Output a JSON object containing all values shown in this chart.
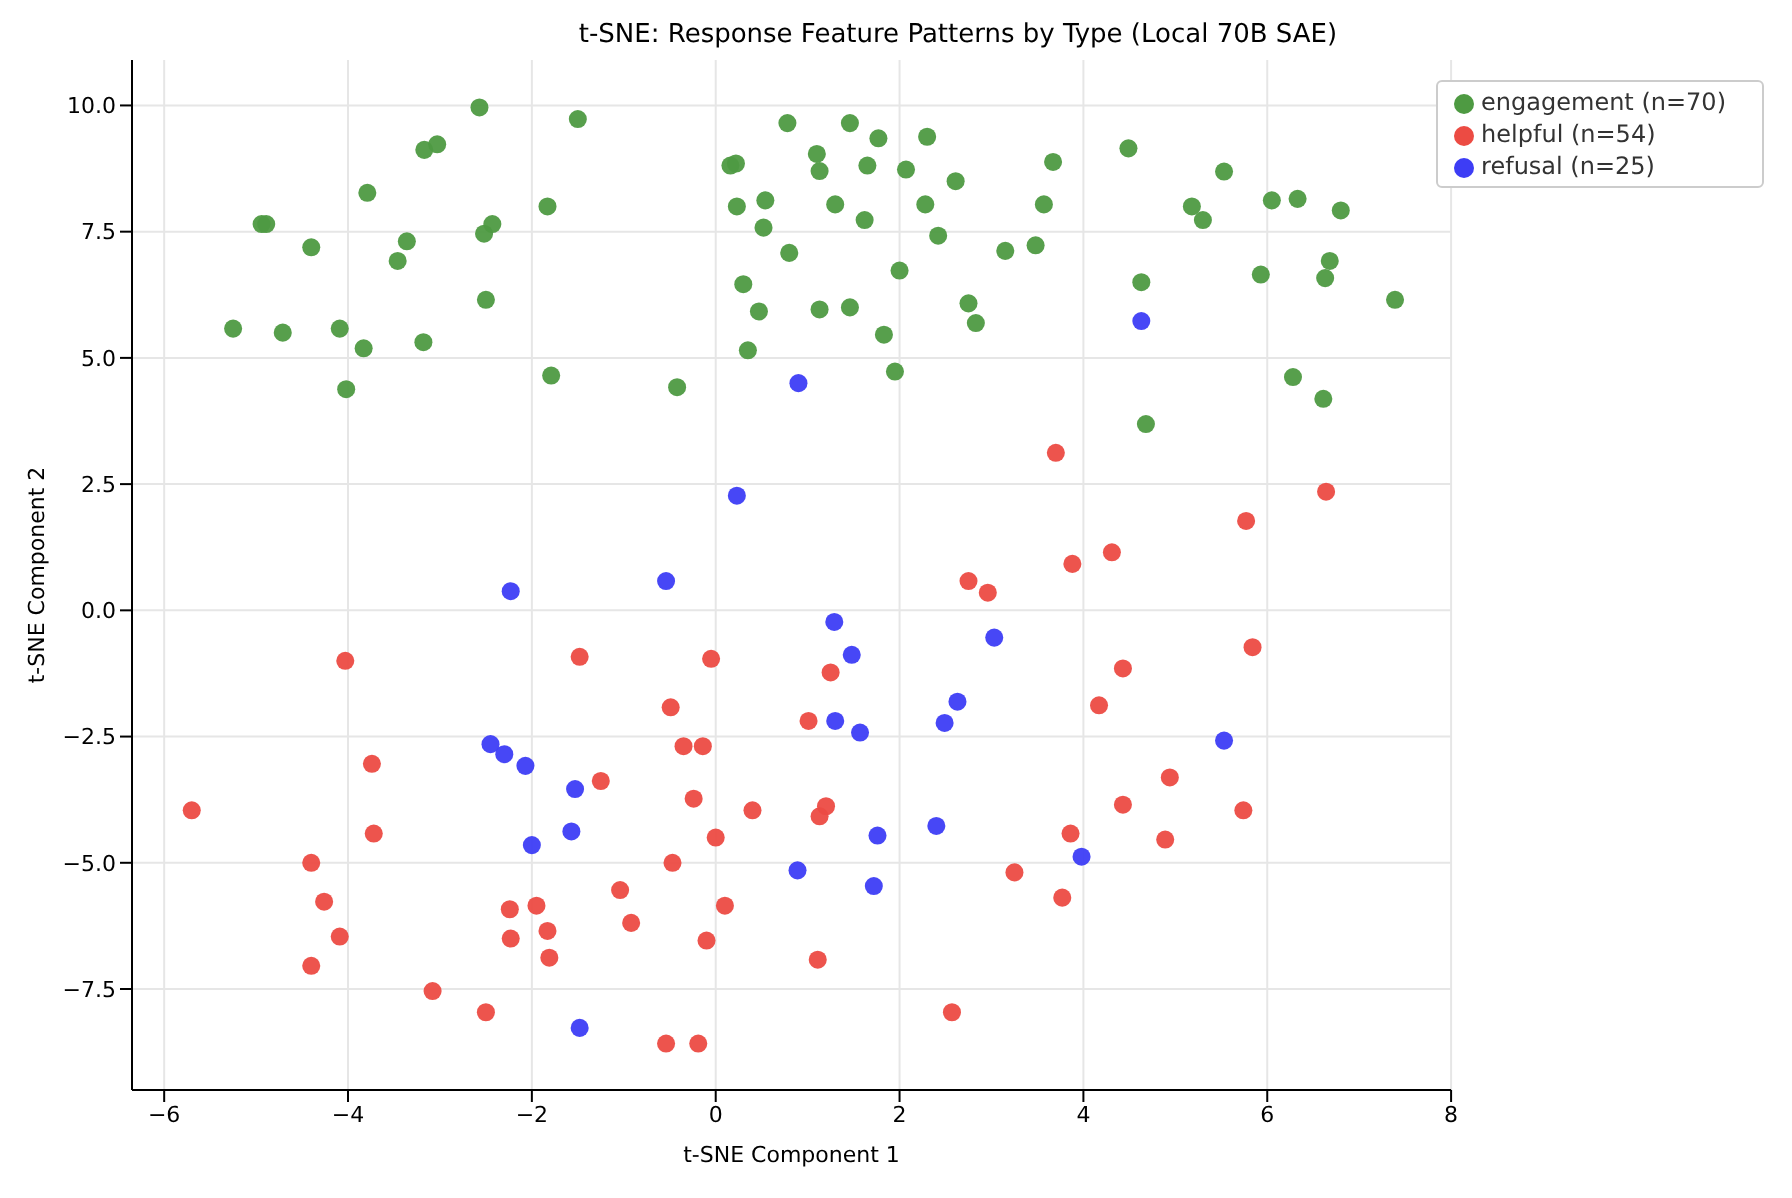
{
  "chart_data": {
    "type": "scatter",
    "title": "t-SNE: Response Feature Patterns by Type (Local 70B SAE)",
    "xlabel": "t-SNE Component 1",
    "ylabel": "t-SNE Component 2",
    "xlim": [
      -6.35,
      8.0
    ],
    "xticks": [
      {
        "value": -6,
        "label": "−6"
      },
      {
        "value": -4,
        "label": "−4"
      },
      {
        "value": -2,
        "label": "−2"
      },
      0,
      2,
      4,
      6,
      8
    ],
    "ylim": [
      -9.5,
      10.9
    ],
    "yticks": [
      {
        "value": -7.5,
        "label": "−7.5"
      },
      {
        "value": -5,
        "label": "−5.0"
      },
      {
        "value": -2.5,
        "label": "−2.5"
      },
      {
        "value": 0,
        "label": "0.0"
      },
      {
        "value": 2.5,
        "label": "2.5"
      },
      {
        "value": 5,
        "label": "5.0"
      },
      {
        "value": 7.5,
        "label": "7.5"
      },
      {
        "value": 10,
        "label": "10.0"
      }
    ],
    "grid": true,
    "legend": "top right",
    "marker": "circle",
    "series": [
      {
        "name": "helpful (n=54)",
        "color": "#ec4b43",
        "x": [
          3.7,
          6.64,
          5.77,
          4.31,
          3.88,
          -4.03,
          -3.74,
          -3.72,
          -5.7,
          -4.4,
          -4.26,
          -4.09,
          -4.4,
          -3.08,
          -2.5,
          -2.24,
          -2.23,
          -1.95,
          -1.83,
          -1.81,
          -1.48,
          -0.05,
          -0.49,
          -0.35,
          -0.14,
          -1.25,
          -0.24,
          0.4,
          0.0,
          -0.47,
          -1.04,
          -0.92,
          0.1,
          -0.1,
          -0.54,
          -0.19,
          1.11,
          2.75,
          2.96,
          1.25,
          1.01,
          1.2,
          1.13,
          2.57,
          3.25,
          4.43,
          4.17,
          5.84,
          4.94,
          4.43,
          5.74,
          3.86,
          4.89,
          3.77
        ],
        "values": [
          3.12,
          2.35,
          1.77,
          1.15,
          0.92,
          -1.0,
          -3.04,
          -4.42,
          -3.96,
          -5.0,
          -5.77,
          -6.46,
          -7.04,
          -7.54,
          -7.96,
          -5.92,
          -6.5,
          -5.85,
          -6.35,
          -6.88,
          -0.92,
          -0.96,
          -1.92,
          -2.69,
          -2.69,
          -3.38,
          -3.73,
          -3.96,
          -4.5,
          -5.0,
          -5.54,
          -6.19,
          -5.85,
          -6.54,
          -8.58,
          -8.58,
          -6.92,
          0.58,
          0.35,
          -1.23,
          -2.19,
          -3.88,
          -4.08,
          -7.96,
          -5.19,
          -1.15,
          -1.88,
          -0.73,
          -3.31,
          -3.85,
          -3.96,
          -4.42,
          -4.54,
          -5.69
        ]
      },
      {
        "name": "refusal (n=25)",
        "color": "#3d3df5",
        "x": [
          0.9,
          0.23,
          4.63,
          -2.23,
          -2.45,
          -2.3,
          -2.07,
          -1.53,
          -1.57,
          -2.0,
          -1.48,
          -0.54,
          1.29,
          1.48,
          1.3,
          1.57,
          3.03,
          2.63,
          2.49,
          2.4,
          1.76,
          0.89,
          1.72,
          5.53,
          3.98
        ],
        "values": [
          4.5,
          2.27,
          5.73,
          0.38,
          -2.65,
          -2.85,
          -3.08,
          -3.54,
          -4.38,
          -4.65,
          -8.27,
          0.58,
          -0.23,
          -0.88,
          -2.19,
          -2.42,
          -0.54,
          -1.81,
          -2.23,
          -4.27,
          -4.46,
          -5.15,
          -5.46,
          -2.58,
          -4.88
        ]
      },
      {
        "name": "engagement (n=70)",
        "color": "#4e9a42",
        "x": [
          -2.57,
          -1.5,
          -3.17,
          -3.03,
          -3.79,
          -4.94,
          -4.89,
          -1.83,
          -2.52,
          -2.43,
          -4.4,
          -3.36,
          -3.46,
          -2.5,
          -5.25,
          -4.71,
          -4.09,
          -3.18,
          -3.83,
          -4.02,
          -1.79,
          0.78,
          1.46,
          1.77,
          2.3,
          1.1,
          0.16,
          0.22,
          1.13,
          1.65,
          2.07,
          2.61,
          0.23,
          0.54,
          1.3,
          2.28,
          0.52,
          1.62,
          2.42,
          0.8,
          3.15,
          2.0,
          0.3,
          0.47,
          1.13,
          1.46,
          2.75,
          2.83,
          1.83,
          0.35,
          1.95,
          -0.42,
          3.67,
          4.49,
          3.57,
          3.48,
          5.53,
          5.18,
          5.3,
          6.05,
          6.33,
          6.8,
          4.63,
          5.93,
          6.68,
          6.63,
          7.39,
          6.28,
          6.61,
          4.68
        ],
        "values": [
          9.96,
          9.73,
          9.12,
          9.23,
          8.27,
          7.65,
          7.65,
          8.0,
          7.46,
          7.65,
          7.19,
          7.31,
          6.92,
          6.15,
          5.58,
          5.5,
          5.58,
          5.31,
          5.19,
          4.38,
          4.65,
          9.65,
          9.65,
          9.35,
          9.38,
          9.04,
          8.81,
          8.85,
          8.7,
          8.81,
          8.73,
          8.5,
          8.0,
          8.12,
          8.04,
          8.04,
          7.58,
          7.73,
          7.42,
          7.08,
          7.12,
          6.73,
          6.46,
          5.92,
          5.96,
          6.0,
          6.08,
          5.69,
          5.46,
          5.15,
          4.73,
          4.42,
          8.88,
          9.15,
          8.04,
          7.23,
          8.69,
          8.0,
          7.73,
          8.12,
          8.15,
          7.92,
          6.5,
          6.65,
          6.92,
          6.58,
          6.15,
          4.62,
          4.19,
          3.69
        ]
      }
    ]
  }
}
